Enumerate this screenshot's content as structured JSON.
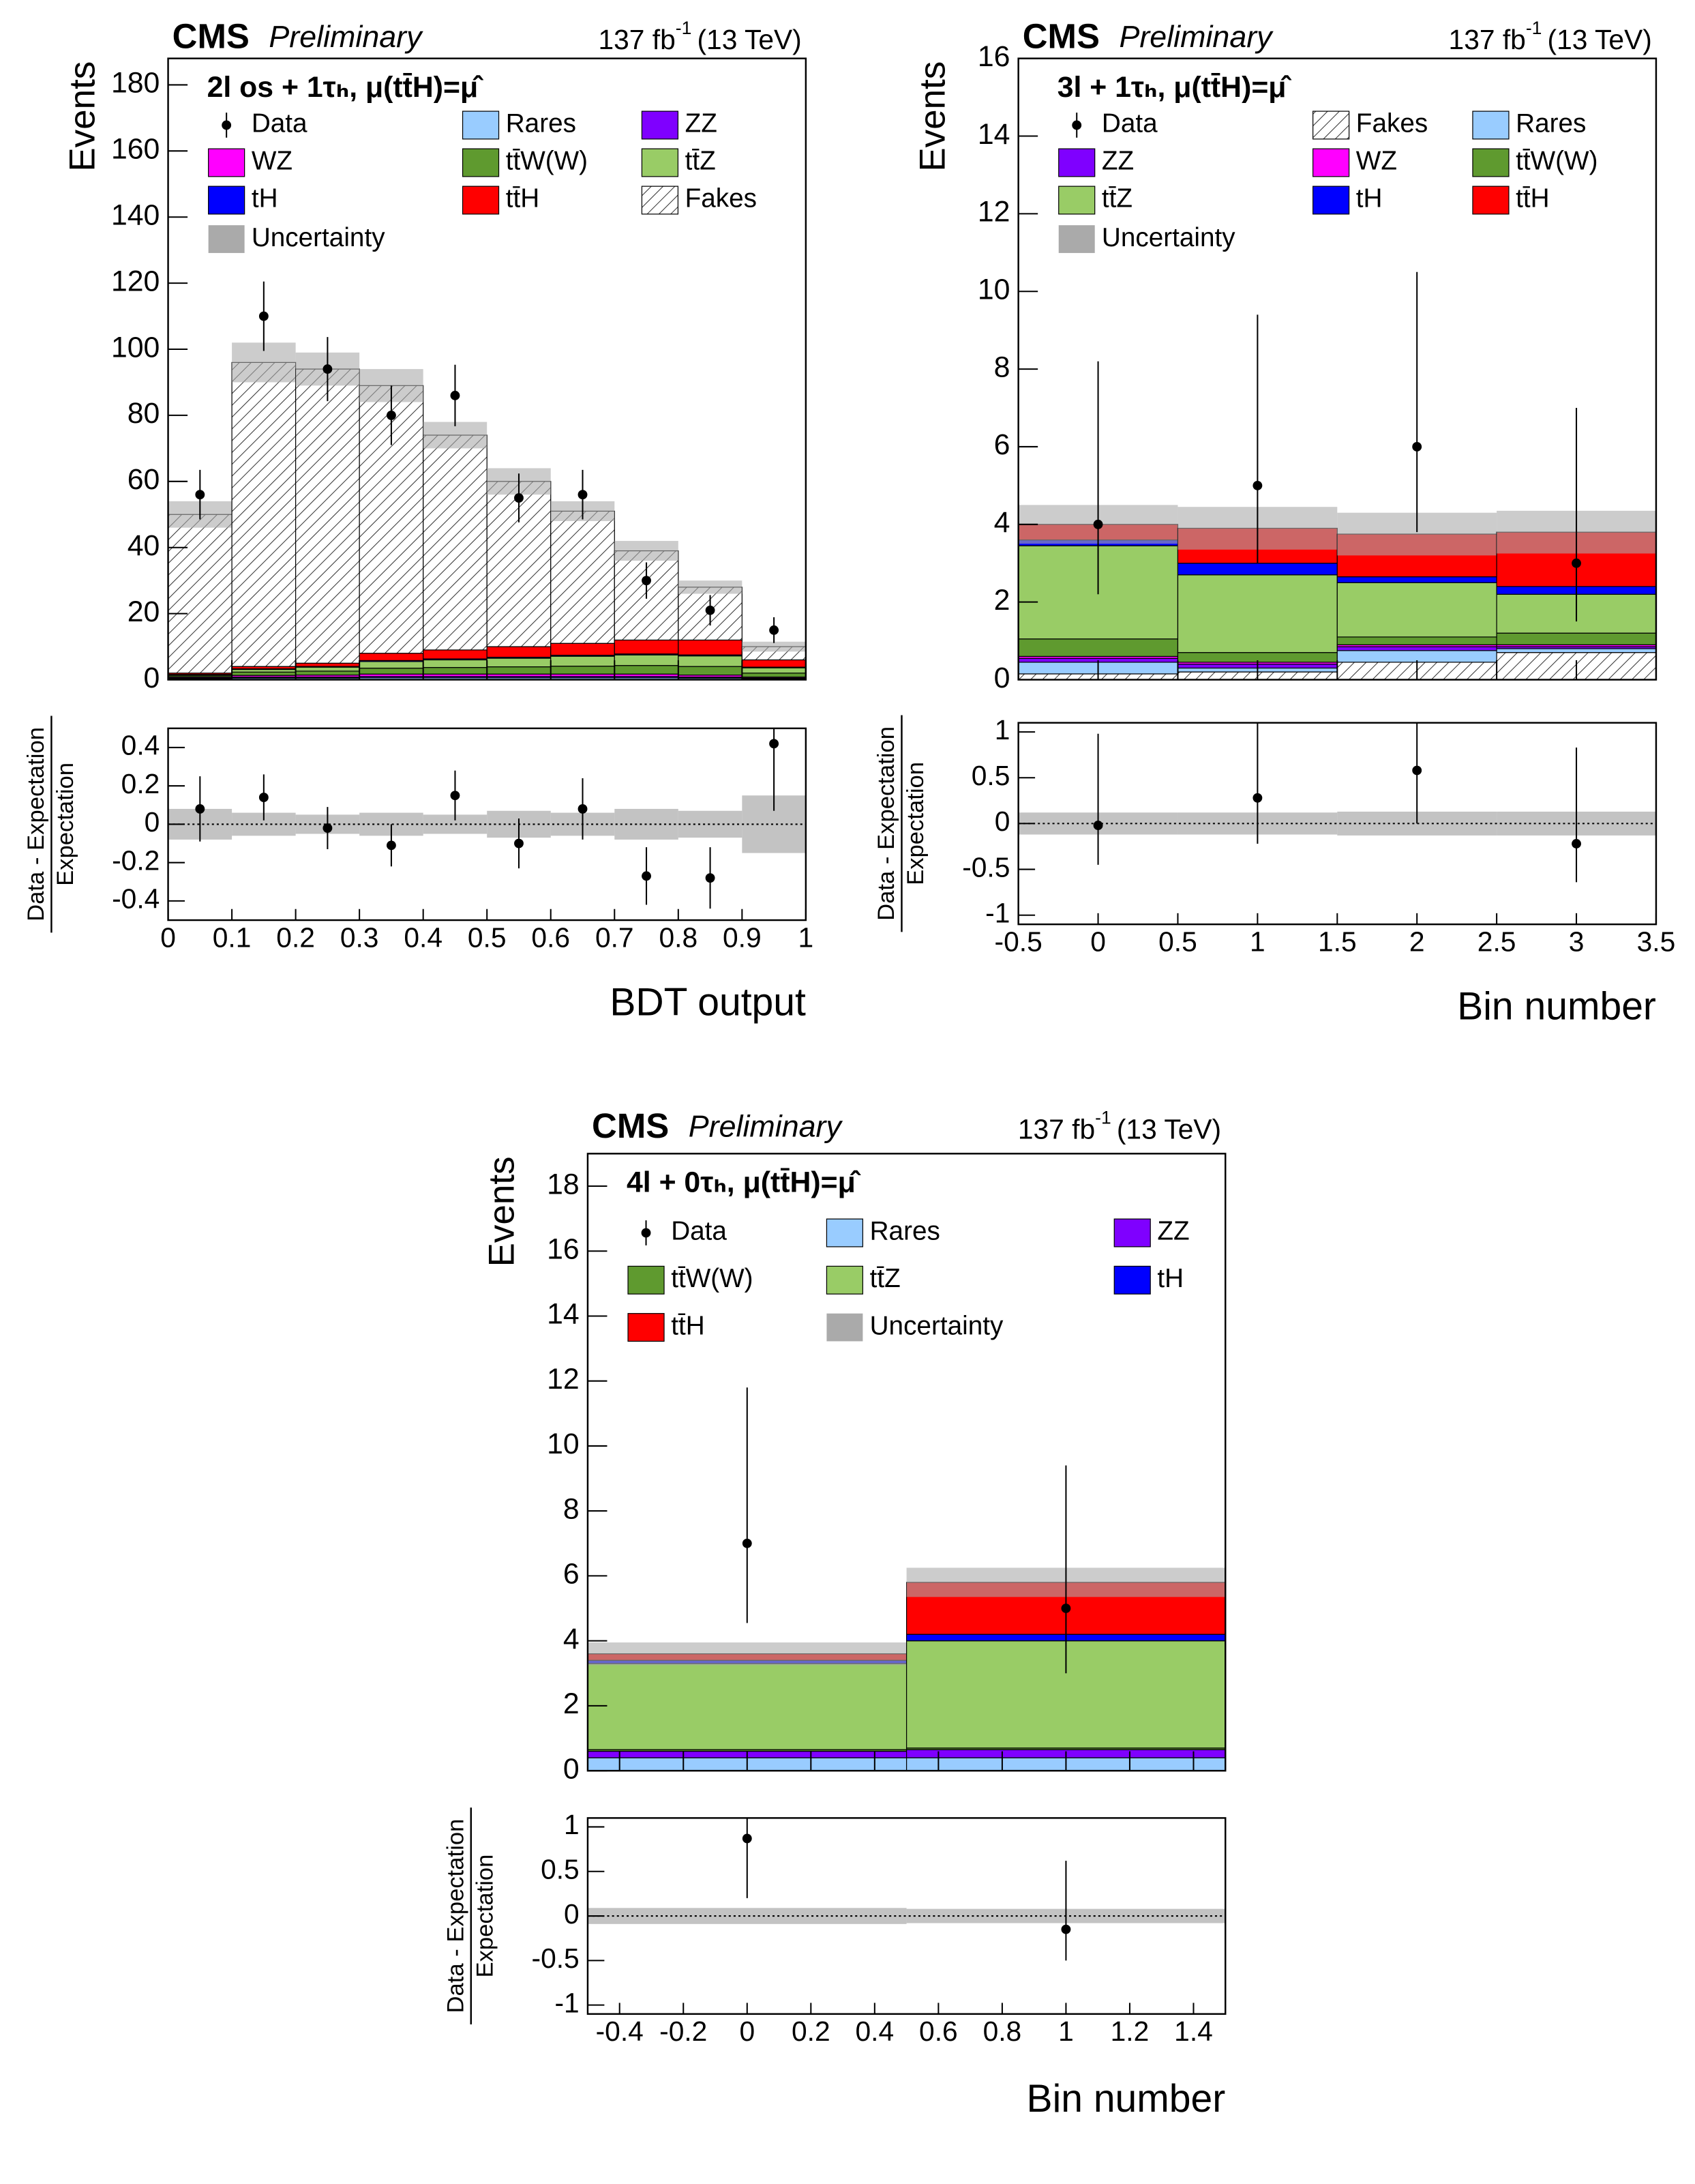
{
  "chart_data": [
    {
      "type": "stacked_histogram",
      "experiment": "CMS",
      "status": "Preliminary",
      "lumi": "137 fb",
      "lumi_exp": "-1",
      "energy": "(13 TeV)",
      "channel": "2l os + 1τₕ, μ(tt̄H)=μ̂",
      "ylabel": "Events",
      "xlabel": "BDT output",
      "ratio_label_num": "Data - Expectation",
      "ratio_label_den": "Expectation",
      "data_name": "Data",
      "uncertainty_name": "Uncertainty",
      "uncertainty_color": "#aaaaaa",
      "bins": [
        0,
        0.1,
        0.2,
        0.3,
        0.4,
        0.5,
        0.6,
        0.7,
        0.8,
        0.9,
        1
      ],
      "series": [
        {
          "name": "Rares",
          "color": "#99ccff",
          "values": [
            0.3,
            0.5,
            0.5,
            0.6,
            0.6,
            0.6,
            0.6,
            0.6,
            0.5,
            0.3
          ]
        },
        {
          "name": "ZZ",
          "color": "#7f00ff",
          "values": [
            0.2,
            0.3,
            0.3,
            0.4,
            0.4,
            0.4,
            0.4,
            0.4,
            0.3,
            0.2
          ]
        },
        {
          "name": "WZ",
          "color": "#ff00ff",
          "values": [
            0.3,
            0.5,
            0.6,
            0.7,
            0.7,
            0.7,
            0.7,
            0.7,
            0.6,
            0.3
          ]
        },
        {
          "name": "tt̄W(W)",
          "color": "#5f9a2f",
          "values": [
            0.4,
            1,
            1.2,
            1.8,
            2,
            2.2,
            2.4,
            2.6,
            2.6,
            1.2
          ]
        },
        {
          "name": "tt̄Z",
          "color": "#99cc66",
          "values": [
            0.3,
            0.8,
            1.2,
            2,
            2.3,
            2.6,
            3,
            3.2,
            3.2,
            1.6
          ]
        },
        {
          "name": "tH",
          "color": "#0000ff",
          "values": [
            0.1,
            0.2,
            0.2,
            0.3,
            0.3,
            0.3,
            0.3,
            0.3,
            0.3,
            0.2
          ]
        },
        {
          "name": "tt̄H",
          "color": "#ff0000",
          "values": [
            0.4,
            0.7,
            1,
            2.2,
            2.7,
            3.2,
            3.6,
            4.2,
            4.5,
            2.2
          ]
        },
        {
          "name": "Fakes",
          "color": "#ffffff",
          "pattern": "hatch",
          "values": [
            48,
            92,
            89,
            81,
            65,
            50,
            40,
            27,
            16,
            4
          ]
        }
      ],
      "uncertainty": [
        4,
        6,
        5,
        5,
        4,
        4,
        3,
        3,
        2,
        1.5
      ],
      "data": [
        56,
        110,
        94,
        80,
        86,
        55,
        56,
        30,
        21,
        15
      ],
      "data_err_low": [
        7.5,
        10.5,
        9.7,
        9,
        9.3,
        7.4,
        7.5,
        5.5,
        4.6,
        3.9
      ],
      "data_err_high": [
        7.5,
        10.5,
        9.7,
        9,
        9.3,
        7.4,
        7.5,
        5.5,
        4.6,
        3.9
      ],
      "ratio": [
        0.08,
        0.14,
        -0.02,
        -0.11,
        0.15,
        -0.1,
        0.08,
        -0.27,
        -0.28,
        0.42
      ],
      "ratio_err_low": [
        0.17,
        0.12,
        0.11,
        0.11,
        0.13,
        0.13,
        0.16,
        0.15,
        0.16,
        0.35
      ],
      "ratio_err_high": [
        0.17,
        0.12,
        0.11,
        0.11,
        0.13,
        0.13,
        0.16,
        0.15,
        0.16,
        0.35
      ],
      "ratio_uncertainty": [
        0.08,
        0.06,
        0.05,
        0.06,
        0.05,
        0.07,
        0.06,
        0.08,
        0.07,
        0.15
      ],
      "xlim": [
        0,
        1
      ],
      "xticks": [
        0,
        0.1,
        0.2,
        0.3,
        0.4,
        0.5,
        0.6,
        0.7,
        0.8,
        0.9,
        1
      ],
      "ylim": [
        0,
        188
      ],
      "yticks": [
        0,
        20,
        40,
        60,
        80,
        100,
        120,
        140,
        160,
        180
      ],
      "ratio_ylim": [
        -0.5,
        0.5
      ],
      "ratio_yticks": [
        -0.4,
        -0.2,
        0,
        0.2,
        0.4
      ]
    },
    {
      "type": "stacked_histogram",
      "experiment": "CMS",
      "status": "Preliminary",
      "lumi": "137 fb",
      "lumi_exp": "-1",
      "energy": "(13 TeV)",
      "channel": "3l + 1τₕ, μ(tt̄H)=μ̂",
      "ylabel": "Events",
      "xlabel": "Bin number",
      "ratio_label_num": "Data - Expectation",
      "ratio_label_den": "Expectation",
      "data_name": "Data",
      "uncertainty_name": "Uncertainty",
      "uncertainty_color": "#aaaaaa",
      "bins": [
        -0.5,
        0.5,
        1.5,
        2.5,
        3.5
      ],
      "series": [
        {
          "name": "Fakes",
          "color": "#ffffff",
          "pattern": "hatch",
          "values": [
            0.15,
            0.2,
            0.45,
            0.7
          ]
        },
        {
          "name": "Rares",
          "color": "#99ccff",
          "values": [
            0.3,
            0.1,
            0.3,
            0.1
          ]
        },
        {
          "name": "ZZ",
          "color": "#7f00ff",
          "values": [
            0.1,
            0.1,
            0.1,
            0.05
          ]
        },
        {
          "name": "WZ",
          "color": "#ff00ff",
          "values": [
            0.05,
            0.05,
            0.05,
            0.05
          ]
        },
        {
          "name": "tt̄W(W)",
          "color": "#5f9a2f",
          "values": [
            0.45,
            0.25,
            0.2,
            0.3
          ]
        },
        {
          "name": "tt̄Z",
          "color": "#99cc66",
          "values": [
            2.4,
            2.0,
            1.4,
            1.0
          ]
        },
        {
          "name": "tH",
          "color": "#0000ff",
          "values": [
            0.15,
            0.3,
            0.15,
            0.2
          ]
        },
        {
          "name": "tt̄H",
          "color": "#ff0000",
          "values": [
            0.4,
            0.9,
            1.1,
            1.4
          ]
        }
      ],
      "uncertainty": [
        0.5,
        0.55,
        0.55,
        0.55
      ],
      "data": [
        4,
        5,
        6,
        3
      ],
      "data_err_low": [
        1.8,
        2.0,
        2.2,
        1.5
      ],
      "data_err_high": [
        4.2,
        4.4,
        4.5,
        4.0
      ],
      "ratio": [
        -0.02,
        0.28,
        0.58,
        -0.22
      ],
      "ratio_err_low": [
        0.43,
        0.5,
        0.58,
        0.42
      ],
      "ratio_err_high": [
        1.0,
        0.9,
        0.9,
        1.05
      ],
      "ratio_uncertainty": [
        0.12,
        0.12,
        0.13,
        0.13
      ],
      "xlim": [
        -0.5,
        3.5
      ],
      "xticks": [
        -0.5,
        0,
        0.5,
        1,
        1.5,
        2,
        2.5,
        3,
        3.5
      ],
      "ylim": [
        0,
        16
      ],
      "yticks": [
        0,
        2,
        4,
        6,
        8,
        10,
        12,
        14,
        16
      ],
      "ratio_ylim": [
        -1.1,
        1.1
      ],
      "ratio_yticks": [
        -1,
        -0.5,
        0,
        0.5,
        1
      ]
    },
    {
      "type": "stacked_histogram",
      "experiment": "CMS",
      "status": "Preliminary",
      "lumi": "137 fb",
      "lumi_exp": "-1",
      "energy": "(13 TeV)",
      "channel": "4l + 0τₕ, μ(tt̄H)=μ̂",
      "ylabel": "Events",
      "xlabel": "Bin number",
      "ratio_label_num": "Data - Expectation",
      "ratio_label_den": "Expectation",
      "data_name": "Data",
      "uncertainty_name": "Uncertainty",
      "uncertainty_color": "#aaaaaa",
      "bins": [
        -0.5,
        0.5,
        1.5
      ],
      "series": [
        {
          "name": "Rares",
          "color": "#99ccff",
          "values": [
            0.4,
            0.4
          ]
        },
        {
          "name": "ZZ",
          "color": "#7f00ff",
          "values": [
            0.2,
            0.25
          ]
        },
        {
          "name": "tt̄W(W)",
          "color": "#5f9a2f",
          "values": [
            0.05,
            0.05
          ]
        },
        {
          "name": "tt̄Z",
          "color": "#99cc66",
          "values": [
            2.65,
            3.3
          ]
        },
        {
          "name": "tH",
          "color": "#0000ff",
          "values": [
            0.1,
            0.2
          ]
        },
        {
          "name": "tt̄H",
          "color": "#ff0000",
          "values": [
            0.2,
            1.6
          ]
        }
      ],
      "uncertainty": [
        0.35,
        0.45
      ],
      "data": [
        7,
        5
      ],
      "data_err_low": [
        2.45,
        2.0
      ],
      "data_err_high": [
        4.8,
        4.4
      ],
      "ratio": [
        0.87,
        -0.15
      ],
      "ratio_err_low": [
        0.67,
        0.35
      ],
      "ratio_err_high": [
        0.25,
        0.77
      ],
      "ratio_uncertainty": [
        0.09,
        0.08
      ],
      "xlim": [
        -0.5,
        1.5
      ],
      "xticks": [
        -0.4,
        -0.2,
        0,
        0.2,
        0.4,
        0.6,
        0.8,
        1,
        1.2,
        1.4
      ],
      "ylim": [
        0,
        19
      ],
      "yticks": [
        0,
        2,
        4,
        6,
        8,
        10,
        12,
        14,
        16,
        18
      ],
      "ratio_ylim": [
        -1.1,
        1.1
      ],
      "ratio_yticks": [
        -1,
        -0.5,
        0,
        0.5,
        1
      ]
    }
  ]
}
